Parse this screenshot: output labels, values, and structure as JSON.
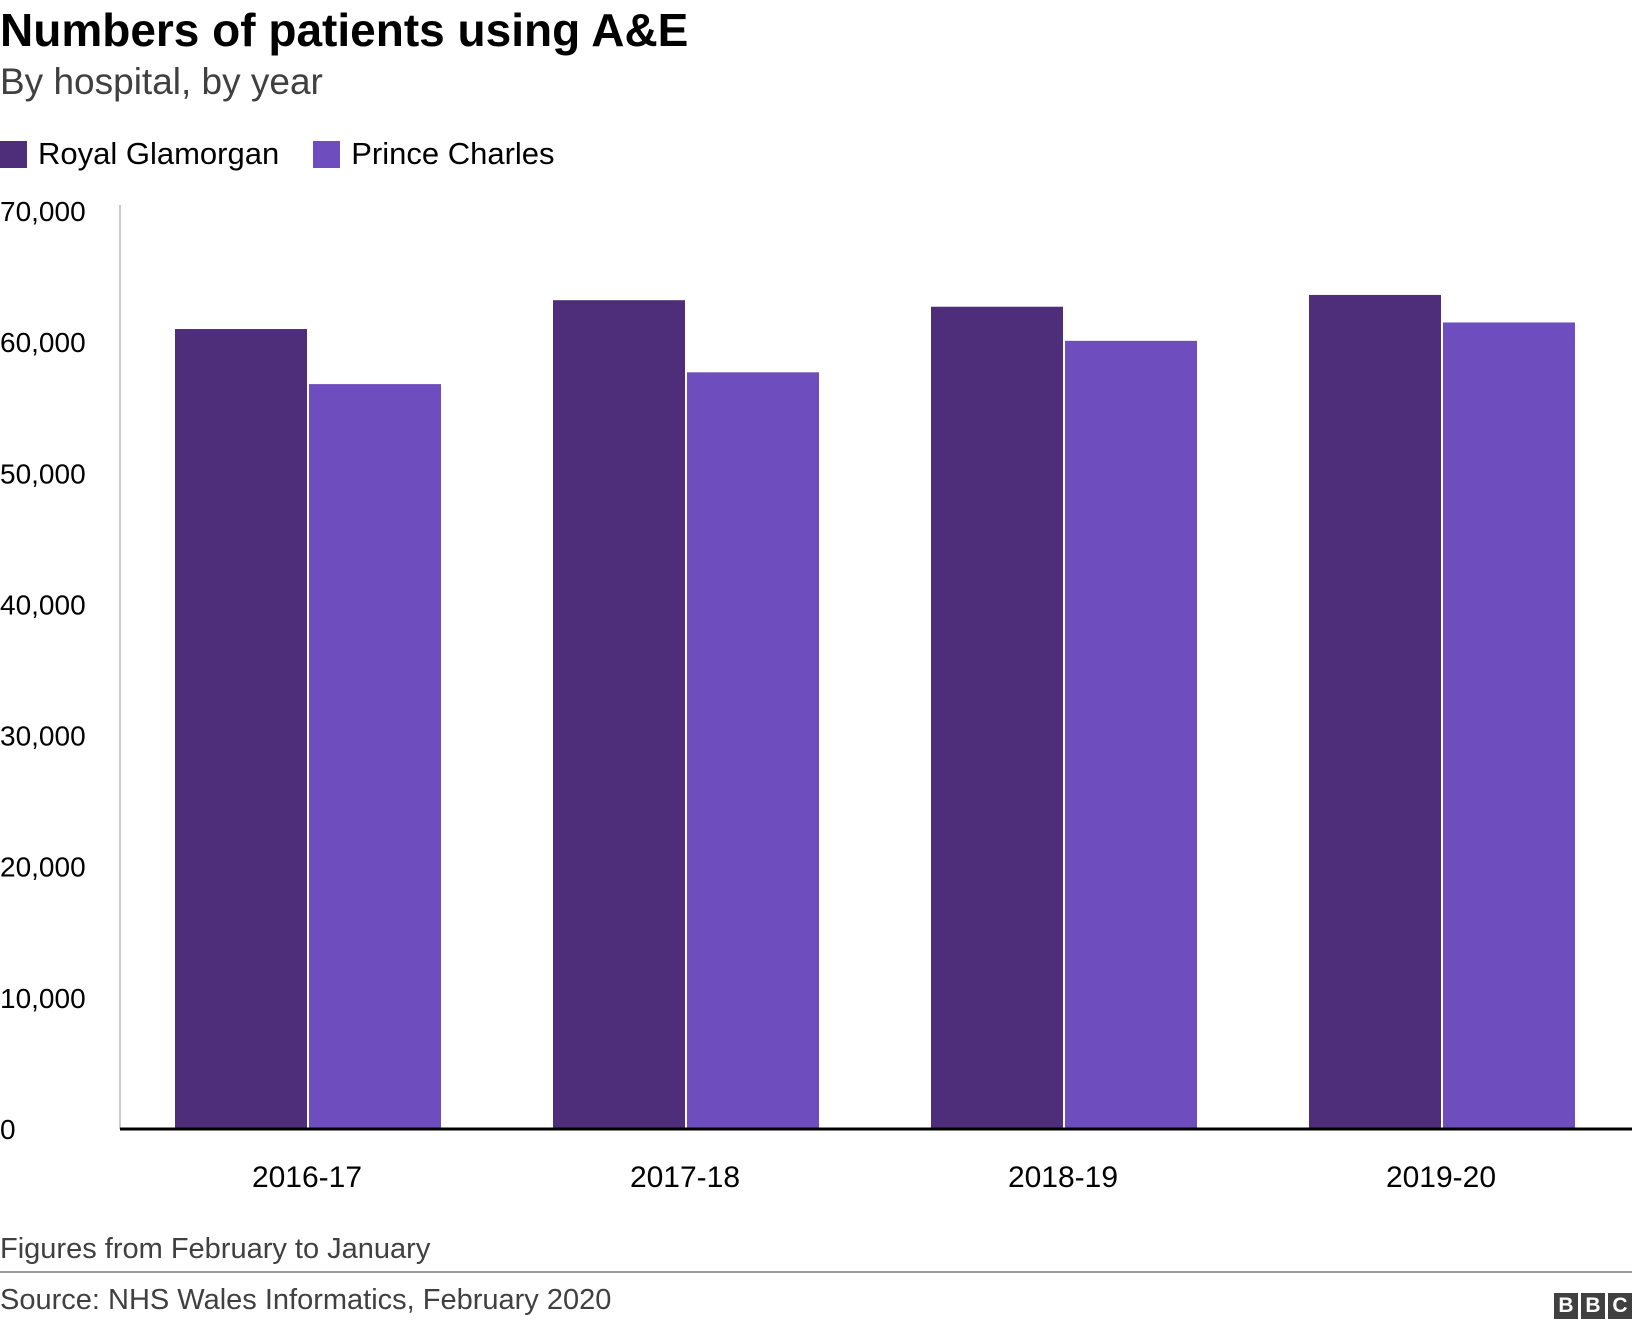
{
  "header": {
    "title": "Numbers of patients using A&E",
    "subtitle": "By hospital, by year"
  },
  "legend": {
    "items": [
      {
        "label": "Royal Glamorgan",
        "color": "#4e2d7a"
      },
      {
        "label": "Prince Charles",
        "color": "#6e4dbe"
      }
    ]
  },
  "footer": {
    "note": "Figures from February to January",
    "source": "Source: NHS Wales Informatics, February 2020",
    "logo_letters": [
      "B",
      "B",
      "C"
    ]
  },
  "chart_data": {
    "type": "bar",
    "title": "Numbers of patients using A&E",
    "subtitle": "By hospital, by year",
    "xlabel": "",
    "ylabel": "",
    "categories": [
      "2016-17",
      "2017-18",
      "2018-19",
      "2019-20"
    ],
    "series": [
      {
        "name": "Royal Glamorgan",
        "color": "#4e2d7a",
        "values": [
          61000,
          63200,
          62700,
          63600
        ]
      },
      {
        "name": "Prince Charles",
        "color": "#6e4dbe",
        "values": [
          56800,
          57700,
          60100,
          61500
        ]
      }
    ],
    "ylim": [
      0,
      70000
    ],
    "yticks": [
      0,
      10000,
      20000,
      30000,
      40000,
      50000,
      60000,
      70000
    ],
    "ytick_labels": [
      "0",
      "10,000",
      "20,000",
      "30,000",
      "40,000",
      "50,000",
      "60,000",
      "70,000"
    ],
    "grid": false,
    "legend_position": "top-left"
  }
}
